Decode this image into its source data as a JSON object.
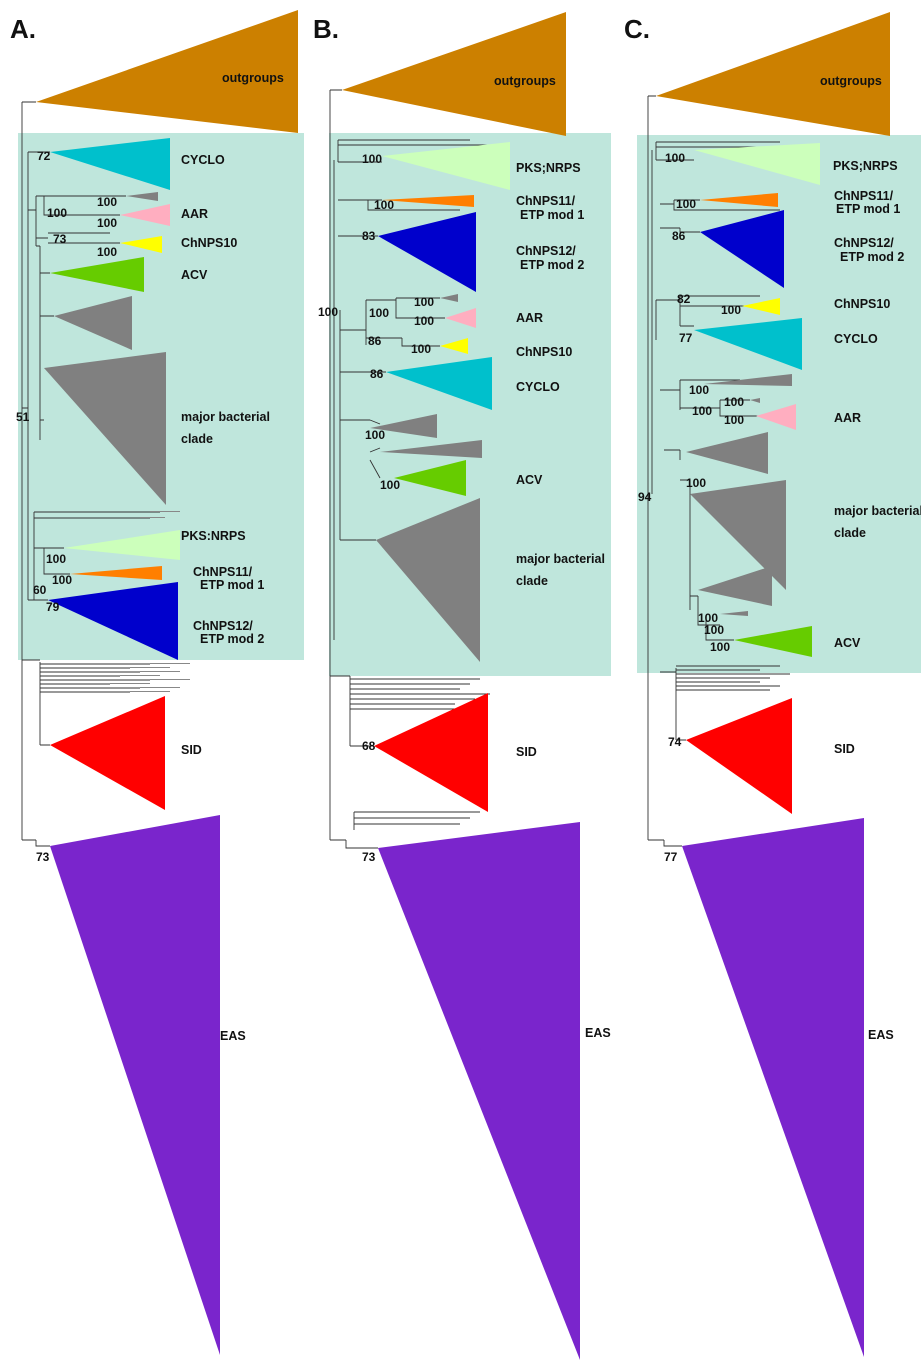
{
  "colors": {
    "highlight": "#bfe6dc",
    "outgroups": "#cc8000",
    "cyclo": "#00c0cc",
    "aar": "#ffaec0",
    "chnps10": "#ffff00",
    "acv": "#66cc00",
    "grey": "#808080",
    "pks_nrps": "#ccffbb",
    "chnps11": "#ff7f00",
    "chnps12": "#0000cc",
    "sid": "#ff0000",
    "eas": "#7a25cc"
  },
  "panels": [
    {
      "letter": "A.",
      "labels": {
        "outgroups": "outgroups",
        "cyclo": "CYCLO",
        "aar": "AAR",
        "chnps10": "ChNPS10",
        "acv": "ACV",
        "major1": "major bacterial",
        "major2": "clade",
        "pks": "PKS:NRPS",
        "chnps11_1": "ChNPS11/",
        "chnps11_2": "ETP mod 1",
        "chnps12_1": "ChNPS12/",
        "chnps12_2": "ETP mod 2",
        "sid": "SID",
        "eas": "EAS"
      },
      "support": [
        "72",
        "100",
        "100",
        "100",
        "73",
        "100",
        "51",
        "100",
        "100",
        "60",
        "79",
        "73"
      ]
    },
    {
      "letter": "B.",
      "labels": {
        "outgroups": "outgroups",
        "pks": "PKS;NRPS",
        "chnps11_1": "ChNPS11/",
        "chnps11_2": "ETP mod 1",
        "chnps12_1": "ChNPS12/",
        "chnps12_2": "ETP mod 2",
        "aar": "AAR",
        "chnps10": "ChNPS10",
        "cyclo": "CYCLO",
        "acv": "ACV",
        "major1": "major bacterial",
        "major2": "clade",
        "sid": "SID",
        "eas": "EAS"
      },
      "support": [
        "100",
        "100",
        "83",
        "100",
        "100",
        "100",
        "86",
        "100",
        "86",
        "100",
        "100",
        "68",
        "73"
      ]
    },
    {
      "letter": "C.",
      "labels": {
        "outgroups": "outgroups",
        "pks": "PKS;NRPS",
        "chnps11_1": "ChNPS11/",
        "chnps11_2": "ETP mod 1",
        "chnps12_1": "ChNPS12/",
        "chnps12_2": "ETP mod 2",
        "chnps10": "ChNPS10",
        "cyclo": "CYCLO",
        "aar": "AAR",
        "major1": "major bacterial",
        "major2": "clade",
        "acv": "ACV",
        "sid": "SID",
        "eas": "EAS"
      },
      "support": [
        "100",
        "100",
        "86",
        "82",
        "100",
        "77",
        "100",
        "100",
        "100",
        "94",
        "100",
        "100",
        "100",
        "74",
        "77"
      ]
    }
  ]
}
